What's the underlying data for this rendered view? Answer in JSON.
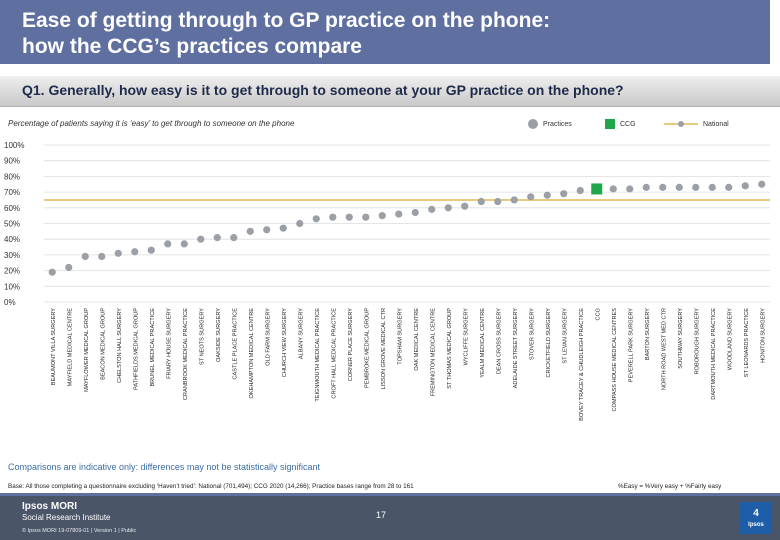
{
  "header": {
    "title_line1": "Ease of getting through to GP practice on the phone:",
    "title_line2": "how the CCG’s practices compare",
    "question": "Q1. Generally, how easy is it to get through to someone at your GP practice on the phone?"
  },
  "chart_data": {
    "type": "scatter",
    "title": "",
    "subtitle": "Percentage of patients saying it is ‘easy’ to get through to someone on the phone",
    "ylim": [
      0,
      100
    ],
    "yticks": [
      "0%",
      "10%",
      "20%",
      "30%",
      "40%",
      "50%",
      "60%",
      "70%",
      "80%",
      "90%",
      "100%"
    ],
    "legend": {
      "position": "top-right",
      "practices": "Practices",
      "ccg": "CCG",
      "national": "National"
    },
    "national_value": 65,
    "colors": {
      "practice": "#9aa0a6",
      "ccg": "#1ea84a",
      "national": "#e6ca7e",
      "grid": "#dddddd"
    },
    "categories": [
      "BEAUMONT VILLA SURGERY",
      "MAYFIELD MEDICAL CENTRE",
      "MAYFLOWER MEDICAL GROUP",
      "BEACON MEDICAL GROUP",
      "CHELSTON HALL SURGERY",
      "PATHFIELDS MEDICAL GROUP",
      "BRUNEL MEDICAL PRACTICE",
      "FRIARY HOUSE SURGERY",
      "CRANBROOK MEDICAL PRACTICE",
      "ST NEOTS SURGERY",
      "OAKSIDE SURGERY",
      "CASTLE PLACE PRACTICE",
      "OKEHAMPTON MEDICAL CENTRE",
      "OLD FARM SURGERY",
      "CHURCH VIEW SURGERY",
      "ALBANY SURGERY",
      "TEIGNMOUTH MEDICAL PRACTICE",
      "CROFT HALL MEDICAL PRACTICE",
      "CORNER PLACE SURGERY",
      "PEMBROKE MEDICAL GROUP",
      "LISSON GROVE MEDICAL CTR",
      "TOPSHAM SURGERY",
      "OAK MEDICAL CENTRE",
      "FREMINGTON MEDICAL CENTRE",
      "ST THOMAS MEDICAL GROUP",
      "WYCLIFFE SURGERY",
      "YEALM MEDICAL CENTRE",
      "DEAN CROSS SURGERY",
      "ADELAIDE STREET SURGERY",
      "STOVER SURGERY",
      "CRICKETFIELD SURGERY",
      "ST LEVAN SURGERY",
      "BOVEY TRACEY & CHUDLEIGH PRACTICE",
      "CCG",
      "COMPASS HOUSE MEDICAL CENTRES",
      "PEVERELL PARK SURGERY",
      "BARTON SURGERY",
      "NORTH ROAD WEST MED CTR",
      "SOUTHWAY SURGERY",
      "ROBOROUGH SURGERY",
      "DARTMOUTH MEDICAL PRACTICE",
      "WOODLAND SURGERY",
      "ST LEONARDS PRACTICE",
      "HONITON SURGERY"
    ],
    "values": [
      19,
      22,
      29,
      29,
      31,
      32,
      33,
      37,
      37,
      40,
      41,
      41,
      45,
      46,
      47,
      50,
      53,
      54,
      54,
      54,
      55,
      56,
      57,
      59,
      60,
      61,
      64,
      64,
      65,
      67,
      68,
      69,
      71,
      72,
      72,
      72,
      73,
      73,
      73,
      73,
      73,
      73,
      74,
      75
    ]
  },
  "notes": {
    "comparison": "Comparisons are indicative only: differences may not be statistically significant",
    "base": "Base: All those completing a questionnaire excluding ‘Haven’t tried’: National (701,494); CCG 2020 (14,266); Practice bases range from 28 to 161",
    "formula": "%Easy = %Very easy + %Fairly easy"
  },
  "footer": {
    "brand_line1": "Ipsos MORI",
    "brand_line2": "Social Research Institute",
    "meta": "© Ipsos MORI     19-07809-01 | Version 1 | Public",
    "page_number": "17",
    "logo_number": "4",
    "logo_text": "Ipsos"
  }
}
